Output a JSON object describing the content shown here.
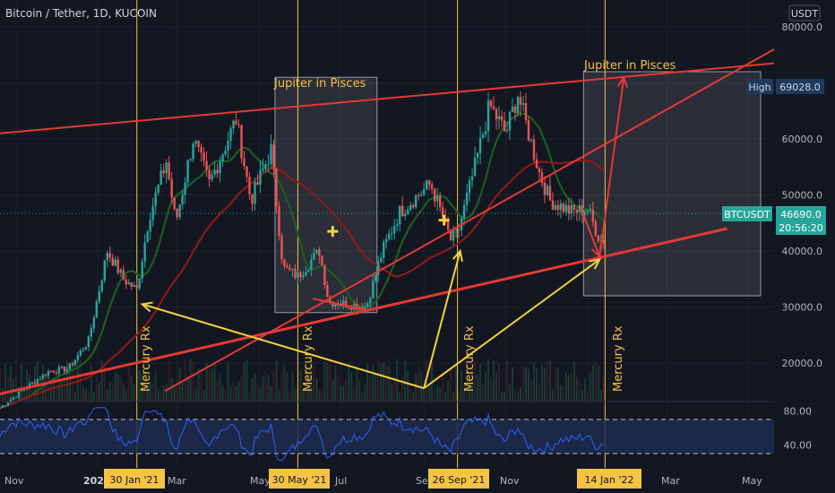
{
  "header": {
    "title": "Bitcoin / Tether, 1D, KUCOIN",
    "currency": "USDT"
  },
  "colors": {
    "background": "#131722",
    "grid": "#1e222d",
    "up": "#26a69a",
    "down": "#ef5350",
    "trend": "#e53935",
    "arrow": "#f5d13b",
    "vline": "#f6c343",
    "ma_fast": "#1b5e20",
    "ma_slow": "#8b1a1a",
    "rsi": "#2962ff",
    "text": "#b2b5be",
    "ticker_bg": "#26a69a",
    "high_bg": "#1e3a5f"
  },
  "price_axis": {
    "ticks": [
      "80000.0",
      "70000.0",
      "60000.0",
      "50000.0",
      "40000.0",
      "30000.0",
      "20000.0"
    ],
    "high_label": "High",
    "high_value": "69028.0",
    "ticker": "BTCUSDT",
    "last_price": "46690.0",
    "countdown": "20:56:20"
  },
  "rsi_axis": {
    "ticks": [
      "80.00",
      "40.00"
    ]
  },
  "time_axis": {
    "labels": [
      "Nov",
      "202",
      "Mar",
      "May",
      "Jul",
      "Se",
      "Nov",
      "Mar",
      "May"
    ],
    "highlights": [
      "30 Jan '21",
      "30 May '21",
      "26 Sep '21",
      "14 Jan '22"
    ]
  },
  "annotations": {
    "jupiter_1": "Jupiter in Pisces",
    "jupiter_2": "Jupiter in Pisces",
    "mercury": [
      "Mercury Rx",
      "Mercury Rx",
      "Mercury Rx",
      "Mercury Rx"
    ]
  },
  "chart_data": {
    "type": "candlestick",
    "title": "Bitcoin / Tether, 1D, KUCOIN",
    "y_unit": "USDT",
    "ylim": [
      14000,
      82000
    ],
    "x_range": [
      "2020-10-20",
      "2022-05-20"
    ],
    "close_path": [
      [
        "2020-10-20",
        12000
      ],
      [
        "2020-11-05",
        15000
      ],
      [
        "2020-11-25",
        18500
      ],
      [
        "2020-12-10",
        19000
      ],
      [
        "2020-12-25",
        24000
      ],
      [
        "2021-01-08",
        40000
      ],
      [
        "2021-01-20",
        35000
      ],
      [
        "2021-01-30",
        33000
      ],
      [
        "2021-02-08",
        46000
      ],
      [
        "2021-02-21",
        56000
      ],
      [
        "2021-02-28",
        45000
      ],
      [
        "2021-03-13",
        60000
      ],
      [
        "2021-03-25",
        52000
      ],
      [
        "2021-04-14",
        63500
      ],
      [
        "2021-04-25",
        49000
      ],
      [
        "2021-05-10",
        58000
      ],
      [
        "2021-05-19",
        37000
      ],
      [
        "2021-05-30",
        35500
      ],
      [
        "2021-06-15",
        40000
      ],
      [
        "2021-06-22",
        31000
      ],
      [
        "2021-07-20",
        30000
      ],
      [
        "2021-08-01",
        40000
      ],
      [
        "2021-08-14",
        47000
      ],
      [
        "2021-09-06",
        52000
      ],
      [
        "2021-09-21",
        42000
      ],
      [
        "2021-09-26",
        43000
      ],
      [
        "2021-10-10",
        56000
      ],
      [
        "2021-10-20",
        66000
      ],
      [
        "2021-11-01",
        61000
      ],
      [
        "2021-11-10",
        68000
      ],
      [
        "2021-11-26",
        54000
      ],
      [
        "2021-12-04",
        49000
      ],
      [
        "2021-12-20",
        47000
      ],
      [
        "2022-01-01",
        47500
      ],
      [
        "2022-01-10",
        42000
      ]
    ],
    "high": 69028.0,
    "last_price": 46690.0,
    "rsi_levels": [
      70,
      30
    ],
    "rsi_ticks": [
      80,
      40
    ],
    "highlight_dates": [
      "2021-01-30",
      "2021-05-30",
      "2021-09-26",
      "2022-01-14"
    ],
    "jupiter_boxes": [
      {
        "from": "2021-05-13",
        "to": "2021-07-28",
        "low": 29000,
        "high": 71000
      },
      {
        "from": "2021-12-29",
        "to": "2022-05-10",
        "low": 32000,
        "high": 72000
      }
    ],
    "trendlines": [
      {
        "from": [
          "2020-10-20",
          61000
        ],
        "to": [
          "2022-05-20",
          73500
        ]
      },
      {
        "from": [
          "2020-10-20",
          14500
        ],
        "to": [
          "2022-04-15",
          44000
        ]
      },
      {
        "from": [
          "2021-02-20",
          15000
        ],
        "to": [
          "2022-05-20",
          76000
        ]
      },
      {
        "from": [
          "2021-07-20",
          29500
        ],
        "to": [
          "2021-06-10",
          31500
        ]
      }
    ],
    "arrows": [
      {
        "from": [
          "2021-09-01",
          15500
        ],
        "to": [
          "2021-02-03",
          30500
        ]
      },
      {
        "from": [
          "2021-09-01",
          15500
        ],
        "to": [
          "2021-09-28",
          40000
        ]
      },
      {
        "from": [
          "2021-09-01",
          15500
        ],
        "to": [
          "2022-01-10",
          38500
        ]
      },
      {
        "from": [
          "2022-01-10",
          39000
        ],
        "to": [
          "2022-01-28",
          71000
        ]
      },
      {
        "from": [
          "2021-12-28",
          47000
        ],
        "to": [
          "2022-01-10",
          39000
        ]
      }
    ]
  }
}
